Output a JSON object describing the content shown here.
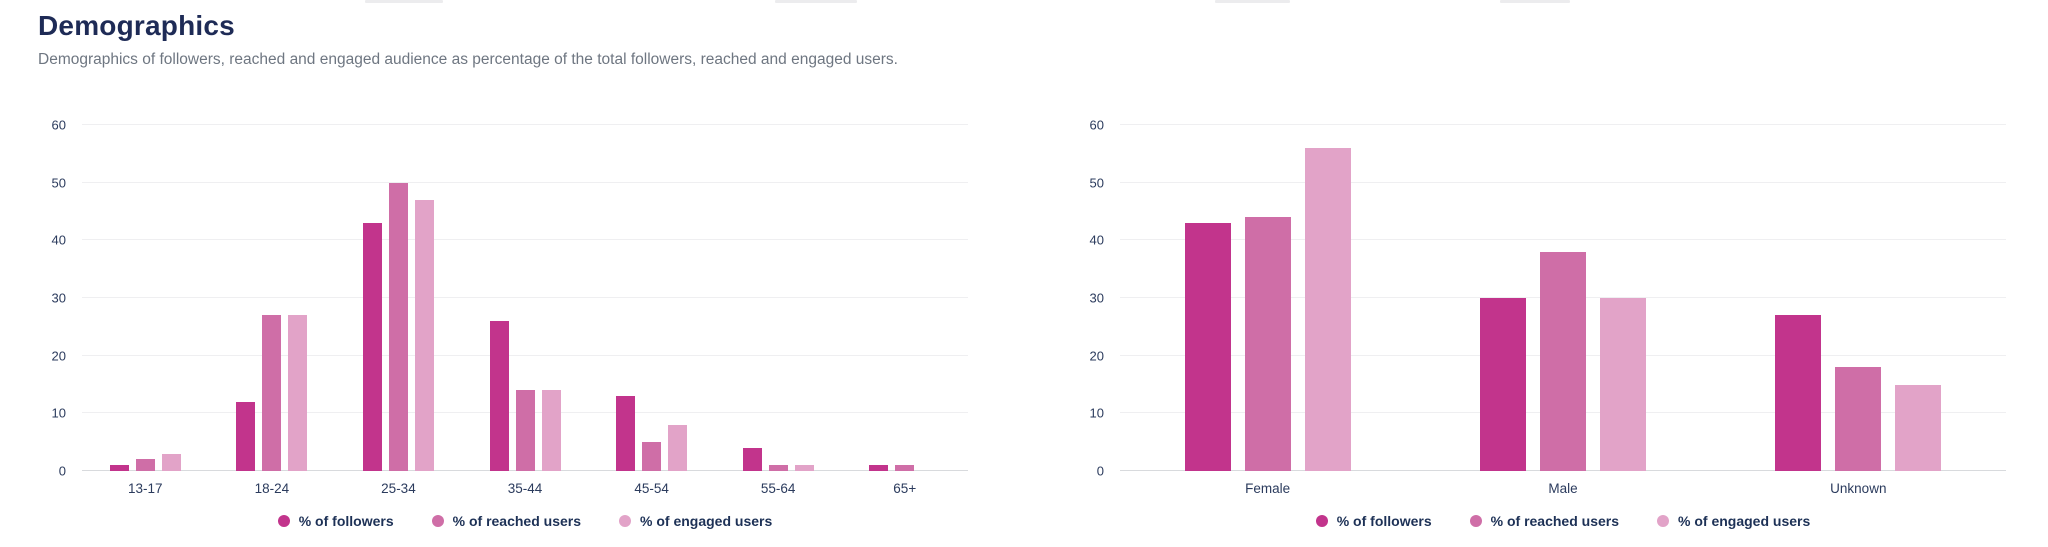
{
  "header": {
    "title": "Demographics",
    "subtitle": "Demographics of followers, reached and engaged audience as percentage of the total followers, reached and engaged users."
  },
  "legend": [
    "% of followers",
    "% of reached users",
    "% of engaged users"
  ],
  "colors": {
    "series": [
      "#C2348C",
      "#CF6EA7",
      "#E2A3C8"
    ],
    "title_text": "#1E2B56",
    "subtitle_text": "#6E7681",
    "axis_text": "#2B3B5D",
    "gridline": "#EFEFF1",
    "zero_line": "#D8DADD"
  },
  "chart_data": [
    {
      "type": "bar",
      "title": "",
      "categories": [
        "13-17",
        "18-24",
        "25-34",
        "35-44",
        "45-54",
        "55-64",
        "65+"
      ],
      "series": [
        {
          "name": "% of followers",
          "values": [
            1,
            12,
            43,
            26,
            13,
            4,
            1
          ]
        },
        {
          "name": "% of reached users",
          "values": [
            2,
            27,
            50,
            14,
            5,
            1,
            1
          ]
        },
        {
          "name": "% of engaged users",
          "values": [
            3,
            27,
            47,
            14,
            8,
            1,
            0
          ]
        }
      ],
      "xlabel": "",
      "ylabel": "",
      "ylim": [
        0,
        60
      ],
      "yticks": [
        0,
        10,
        20,
        30,
        40,
        50,
        60
      ],
      "grid": true,
      "legend_position": "bottom"
    },
    {
      "type": "bar",
      "title": "",
      "categories": [
        "Female",
        "Male",
        "Unknown"
      ],
      "series": [
        {
          "name": "% of followers",
          "values": [
            43,
            30,
            27
          ]
        },
        {
          "name": "% of reached users",
          "values": [
            44,
            38,
            18
          ]
        },
        {
          "name": "% of engaged users",
          "values": [
            56,
            30,
            15
          ]
        }
      ],
      "xlabel": "",
      "ylabel": "",
      "ylim": [
        0,
        60
      ],
      "yticks": [
        0,
        10,
        20,
        30,
        40,
        50,
        60
      ],
      "grid": true,
      "legend_position": "bottom"
    }
  ]
}
